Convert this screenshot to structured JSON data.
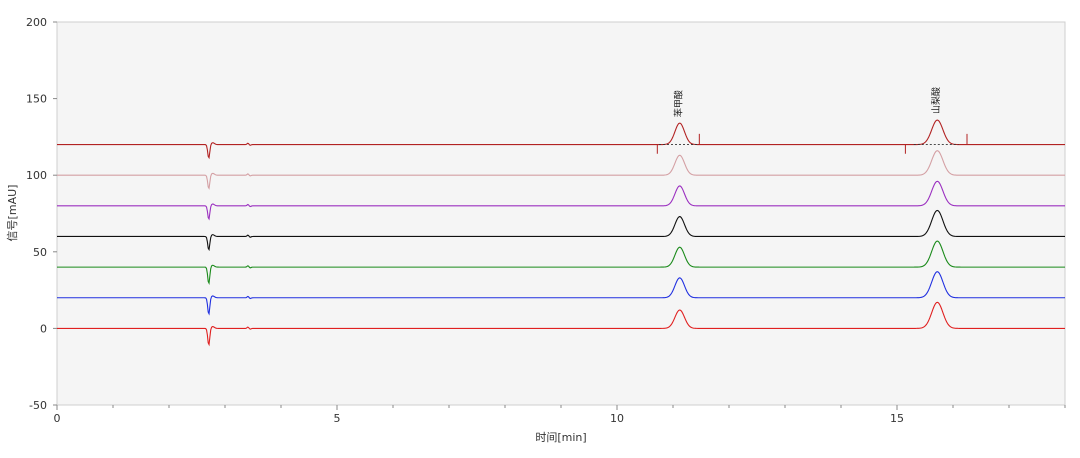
{
  "chart_data": {
    "type": "line",
    "title": "",
    "xlabel": "时间[min]",
    "ylabel": "信号[mAU]",
    "xlim": [
      0,
      18
    ],
    "ylim": [
      -50,
      200
    ],
    "x_ticks": [
      0,
      5,
      10,
      15
    ],
    "y_ticks": [
      -50,
      0,
      50,
      100,
      150,
      200
    ],
    "grid": false,
    "legend": "none",
    "plot_background": "#f5f5f5",
    "peaks": [
      {
        "name": "苯甲酸",
        "retention_time": 11.1
      },
      {
        "name": "山梨酸",
        "retention_time": 15.7
      }
    ],
    "series": [
      {
        "color": "#b22222",
        "baseline": 120,
        "points": [
          [
            0,
            120
          ],
          [
            2.6,
            120
          ],
          [
            2.7,
            111
          ],
          [
            2.8,
            119.5
          ],
          [
            3.4,
            120.5
          ],
          [
            10.9,
            120
          ],
          [
            11.0,
            124
          ],
          [
            11.1,
            134
          ],
          [
            11.2,
            124
          ],
          [
            11.3,
            120
          ],
          [
            15.5,
            120
          ],
          [
            15.6,
            127
          ],
          [
            15.7,
            136
          ],
          [
            15.8,
            127
          ],
          [
            15.9,
            121
          ],
          [
            18,
            120
          ]
        ]
      },
      {
        "color": "#d4a0a4",
        "baseline": 100,
        "points": [
          [
            0,
            100
          ],
          [
            2.6,
            100
          ],
          [
            2.7,
            91
          ],
          [
            2.8,
            99.5
          ],
          [
            3.4,
            100.5
          ],
          [
            10.9,
            100
          ],
          [
            11.0,
            104
          ],
          [
            11.1,
            113
          ],
          [
            11.2,
            104
          ],
          [
            11.3,
            100
          ],
          [
            15.5,
            100
          ],
          [
            15.6,
            107
          ],
          [
            15.7,
            116
          ],
          [
            15.8,
            107
          ],
          [
            15.9,
            101
          ],
          [
            18,
            100
          ]
        ]
      },
      {
        "color": "#9b30c0",
        "baseline": 80,
        "points": [
          [
            0,
            80
          ],
          [
            2.6,
            80
          ],
          [
            2.7,
            71
          ],
          [
            2.8,
            79.5
          ],
          [
            3.4,
            80.5
          ],
          [
            10.9,
            80
          ],
          [
            11.0,
            84
          ],
          [
            11.1,
            93
          ],
          [
            11.2,
            84
          ],
          [
            11.3,
            80
          ],
          [
            15.5,
            80
          ],
          [
            15.6,
            87
          ],
          [
            15.7,
            96
          ],
          [
            15.8,
            87
          ],
          [
            15.9,
            81
          ],
          [
            18,
            80
          ]
        ]
      },
      {
        "color": "#111111",
        "baseline": 60,
        "points": [
          [
            0,
            60
          ],
          [
            2.6,
            60
          ],
          [
            2.7,
            51
          ],
          [
            2.8,
            59.5
          ],
          [
            3.4,
            60.5
          ],
          [
            10.9,
            60
          ],
          [
            11.0,
            64
          ],
          [
            11.1,
            73
          ],
          [
            11.2,
            64
          ],
          [
            11.3,
            60
          ],
          [
            15.5,
            60
          ],
          [
            15.6,
            67
          ],
          [
            15.7,
            77
          ],
          [
            15.8,
            67
          ],
          [
            15.9,
            61
          ],
          [
            18,
            60
          ]
        ]
      },
      {
        "color": "#1a8a1a",
        "baseline": 40,
        "points": [
          [
            0,
            40
          ],
          [
            2.6,
            40
          ],
          [
            2.7,
            29
          ],
          [
            2.8,
            39.5
          ],
          [
            3.4,
            40.5
          ],
          [
            10.9,
            40
          ],
          [
            11.0,
            44
          ],
          [
            11.1,
            53
          ],
          [
            11.2,
            44
          ],
          [
            11.3,
            40
          ],
          [
            15.5,
            40
          ],
          [
            15.6,
            47
          ],
          [
            15.7,
            57
          ],
          [
            15.8,
            47
          ],
          [
            15.9,
            41
          ],
          [
            18,
            40
          ]
        ]
      },
      {
        "color": "#2030e0",
        "baseline": 20,
        "points": [
          [
            0,
            20
          ],
          [
            2.6,
            20
          ],
          [
            2.7,
            9
          ],
          [
            2.8,
            19.5
          ],
          [
            3.4,
            20.5
          ],
          [
            10.9,
            20
          ],
          [
            11.0,
            24
          ],
          [
            11.1,
            33
          ],
          [
            11.2,
            24
          ],
          [
            11.3,
            20
          ],
          [
            15.5,
            20
          ],
          [
            15.6,
            27
          ],
          [
            15.7,
            37
          ],
          [
            15.8,
            27
          ],
          [
            15.9,
            21
          ],
          [
            18,
            20
          ]
        ]
      },
      {
        "color": "#e02020",
        "baseline": 0,
        "points": [
          [
            0,
            0
          ],
          [
            2.6,
            0
          ],
          [
            2.7,
            -11
          ],
          [
            2.8,
            -0.5
          ],
          [
            3.4,
            0.5
          ],
          [
            10.9,
            0
          ],
          [
            11.0,
            4
          ],
          [
            11.1,
            12
          ],
          [
            11.2,
            4
          ],
          [
            11.3,
            0
          ],
          [
            15.5,
            0
          ],
          [
            15.6,
            7
          ],
          [
            15.7,
            17
          ],
          [
            15.8,
            7
          ],
          [
            15.9,
            1
          ],
          [
            18,
            0
          ]
        ]
      }
    ]
  }
}
